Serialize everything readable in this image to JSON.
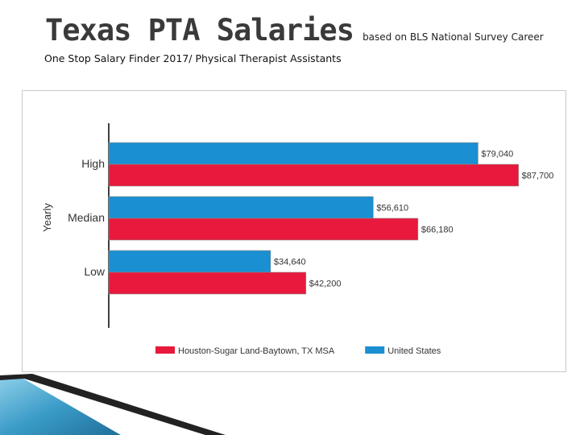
{
  "header": {
    "title": "Texas PTA Salaries",
    "title_note": "based on BLS National Survey Career",
    "subtitle": "One Stop Salary Finder 2017/ Physical Therapist Assistants"
  },
  "chart_data": {
    "type": "bar",
    "orientation": "horizontal",
    "ylabel": "Yearly",
    "categories": [
      "High",
      "Median",
      "Low"
    ],
    "series": [
      {
        "name": "United States",
        "color": "#1a8fd1",
        "values": [
          79040,
          56610,
          34640
        ],
        "labels": [
          "$79,040",
          "$56,610",
          "$34,640"
        ]
      },
      {
        "name": "Houston-Sugar Land-Baytown, TX MSA",
        "color": "#e8193c",
        "values": [
          87700,
          66180,
          42200
        ],
        "labels": [
          "$87,700",
          "$66,180",
          "$42,200"
        ]
      }
    ],
    "xlim": [
      0,
      90000
    ],
    "legend_order": [
      "Houston-Sugar Land-Baytown, TX MSA",
      "United States"
    ],
    "legend_position": "bottom",
    "grid": false
  }
}
